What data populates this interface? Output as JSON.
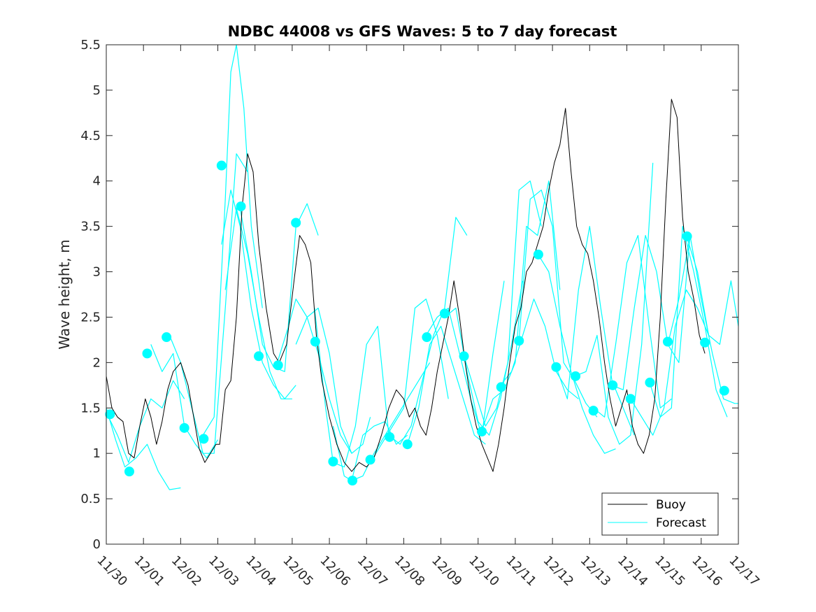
{
  "chart_data": {
    "type": "line",
    "title": "NDBC 44008 vs GFS Waves: 5 to 7 day forecast",
    "ylabel": "Wave height, m",
    "xlabel": "",
    "xlim": [
      0,
      17
    ],
    "ylim": [
      0,
      5.5
    ],
    "yticks": [
      "0",
      "0.5",
      "1",
      "1.5",
      "2",
      "2.5",
      "3",
      "3.5",
      "4",
      "4.5",
      "5",
      "5.5"
    ],
    "xticks": [
      "11/30",
      "12/01",
      "12/02",
      "12/03",
      "12/04",
      "12/05",
      "12/06",
      "12/07",
      "12/08",
      "12/09",
      "12/10",
      "12/11",
      "12/12",
      "12/13",
      "12/14",
      "12/15",
      "12/16",
      "12/17"
    ],
    "legend": {
      "location": "bottom-right",
      "entries": [
        "Buoy",
        "Forecast"
      ]
    },
    "colors": {
      "buoy": "#000000",
      "forecast": "#00ffff",
      "axis": "#262626"
    },
    "series": [
      {
        "name": "Buoy",
        "x": [
          0,
          0.15,
          0.3,
          0.45,
          0.6,
          0.75,
          0.9,
          1.05,
          1.2,
          1.35,
          1.5,
          1.65,
          1.8,
          2.0,
          2.2,
          2.35,
          2.5,
          2.65,
          2.8,
          2.95,
          3.05,
          3.2,
          3.35,
          3.5,
          3.65,
          3.8,
          3.95,
          4.1,
          4.3,
          4.5,
          4.65,
          4.85,
          5.05,
          5.2,
          5.35,
          5.5,
          5.65,
          5.8,
          6.0,
          6.2,
          6.4,
          6.6,
          6.8,
          7.0,
          7.2,
          7.4,
          7.6,
          7.8,
          8.0,
          8.15,
          8.3,
          8.45,
          8.6,
          8.75,
          8.9,
          9.05,
          9.2,
          9.35,
          9.5,
          9.65,
          9.8,
          9.95,
          10.1,
          10.25,
          10.4,
          10.55,
          10.7,
          10.85,
          11.0,
          11.15,
          11.3,
          11.45,
          11.6,
          11.75,
          11.9,
          12.05,
          12.2,
          12.35,
          12.5,
          12.65,
          12.8,
          12.95,
          13.1,
          13.25,
          13.4,
          13.55,
          13.7,
          13.85,
          14.0,
          14.15,
          14.3,
          14.45,
          14.6,
          14.75,
          14.9,
          15.05,
          15.2,
          15.35,
          15.5,
          15.65,
          15.8,
          15.95,
          16.1
        ],
        "values": [
          1.85,
          1.5,
          1.4,
          1.35,
          1.0,
          0.95,
          1.3,
          1.6,
          1.4,
          1.1,
          1.35,
          1.7,
          1.9,
          2.0,
          1.75,
          1.4,
          1.05,
          0.9,
          1.0,
          1.1,
          1.1,
          1.7,
          1.8,
          2.5,
          3.7,
          4.3,
          4.1,
          3.3,
          2.6,
          2.1,
          2.0,
          2.2,
          2.9,
          3.4,
          3.3,
          3.1,
          2.3,
          1.8,
          1.4,
          1.1,
          0.9,
          0.8,
          0.9,
          0.85,
          0.95,
          1.2,
          1.5,
          1.7,
          1.6,
          1.4,
          1.5,
          1.3,
          1.2,
          1.5,
          1.9,
          2.2,
          2.5,
          2.9,
          2.5,
          2.0,
          1.6,
          1.3,
          1.1,
          0.95,
          0.8,
          1.1,
          1.5,
          2.0,
          2.4,
          2.6,
          3.0,
          3.1,
          3.3,
          3.5,
          3.9,
          4.2,
          4.4,
          4.8,
          4.1,
          3.5,
          3.3,
          3.2,
          2.9,
          2.5,
          2.0,
          1.6,
          1.3,
          1.5,
          1.7,
          1.3,
          1.1,
          1.0,
          1.2,
          1.6,
          2.5,
          3.8,
          4.9,
          4.7,
          3.6,
          3.0,
          2.7,
          2.3,
          2.1
        ]
      },
      {
        "name": "Forecast",
        "segments": [
          {
            "x": [
              0,
              0.25,
              0.5,
              0.8,
              1.1,
              1.4,
              1.7,
              2.0
            ],
            "values": [
              1.5,
              1.15,
              0.85,
              0.95,
              1.1,
              0.8,
              0.6,
              0.62
            ]
          },
          {
            "x": [
              0,
              0.3,
              0.6,
              0.9,
              1.2,
              1.5,
              1.8,
              2.1
            ],
            "values": [
              1.45,
              1.2,
              0.9,
              1.3,
              1.6,
              1.5,
              1.8,
              1.6
            ]
          },
          {
            "x": [
              1.2,
              1.5,
              1.8,
              2.1,
              2.4,
              2.7,
              3.0
            ],
            "values": [
              2.2,
              1.9,
              2.1,
              1.3,
              1.1,
              0.95,
              1.15
            ]
          },
          {
            "x": [
              1.7,
              2.0,
              2.3,
              2.6,
              2.9,
              3.2,
              3.5,
              3.8
            ],
            "values": [
              2.3,
              2.0,
              1.5,
              1.0,
              1.0,
              2.6,
              4.3,
              4.1
            ]
          },
          {
            "x": [
              2.6,
              2.9,
              3.2,
              3.35,
              3.5,
              3.7,
              3.9,
              4.2
            ],
            "values": [
              1.2,
              1.4,
              3.8,
              5.2,
              5.5,
              4.8,
              3.5,
              2.6
            ]
          },
          {
            "x": [
              3.1,
              3.35,
              3.6,
              3.9,
              4.2,
              4.5,
              4.8,
              5.1
            ],
            "values": [
              3.3,
              3.9,
              3.5,
              2.6,
              2.0,
              1.75,
              1.6,
              1.75
            ]
          },
          {
            "x": [
              3.2,
              3.5,
              3.8,
              4.1,
              4.4,
              4.7,
              5.0
            ],
            "values": [
              2.8,
              3.7,
              3.2,
              2.5,
              1.9,
              1.6,
              1.6
            ]
          },
          {
            "x": [
              3.6,
              3.9,
              4.2,
              4.5,
              4.8,
              5.1,
              5.4,
              5.7
            ],
            "values": [
              3.7,
              3.0,
              2.2,
              1.95,
              1.9,
              3.5,
              3.75,
              3.4
            ]
          },
          {
            "x": [
              4.6,
              4.9,
              5.1,
              5.4,
              5.7,
              6.0,
              6.3,
              6.6
            ],
            "values": [
              2.0,
              2.4,
              2.7,
              2.5,
              2.1,
              1.6,
              1.2,
              1.0
            ]
          },
          {
            "x": [
              5.1,
              5.4,
              5.7,
              6.0,
              6.3,
              6.6,
              6.9,
              7.1
            ],
            "values": [
              2.2,
              2.5,
              2.6,
              2.1,
              1.3,
              1.0,
              1.1,
              1.4
            ]
          },
          {
            "x": [
              5.6,
              5.9,
              6.1,
              6.4,
              6.7,
              7.0,
              7.3,
              7.6
            ],
            "values": [
              2.6,
              1.5,
              0.9,
              0.85,
              1.3,
              2.2,
              2.4,
              1.2
            ]
          },
          {
            "x": [
              6.1,
              6.4,
              6.6,
              6.9,
              7.2,
              7.5,
              7.8,
              8.1
            ],
            "values": [
              1.3,
              0.75,
              0.7,
              1.2,
              1.3,
              1.35,
              1.1,
              1.2
            ]
          },
          {
            "x": [
              6.6,
              6.9,
              7.2,
              7.5,
              7.8,
              8.1,
              8.4,
              8.7
            ],
            "values": [
              0.7,
              0.75,
              1.0,
              1.2,
              1.4,
              1.6,
              1.8,
              2.0
            ]
          },
          {
            "x": [
              7.1,
              7.4,
              7.7,
              8.0,
              8.3,
              8.6,
              8.9,
              9.2
            ],
            "values": [
              0.9,
              1.1,
              1.3,
              1.5,
              2.6,
              2.7,
              2.3,
              1.6
            ]
          },
          {
            "x": [
              7.6,
              7.9,
              8.2,
              8.5,
              8.8,
              9.1,
              9.4,
              9.7
            ],
            "values": [
              1.2,
              1.1,
              1.3,
              1.8,
              2.3,
              2.6,
              3.6,
              3.4
            ]
          },
          {
            "x": [
              8.1,
              8.4,
              8.7,
              9.0,
              9.3,
              9.6,
              9.9,
              10.2
            ],
            "values": [
              1.1,
              1.5,
              2.2,
              2.4,
              2.0,
              1.6,
              1.2,
              1.1
            ]
          },
          {
            "x": [
              8.6,
              8.9,
              9.2,
              9.5,
              9.8,
              10.1,
              10.4,
              10.7
            ],
            "values": [
              2.3,
              2.5,
              2.6,
              2.1,
              1.6,
              1.2,
              2.1,
              2.9
            ]
          },
          {
            "x": [
              9.1,
              9.4,
              9.7,
              10.0,
              10.3,
              10.6,
              10.9,
              11.2
            ],
            "values": [
              2.5,
              2.6,
              1.9,
              1.35,
              1.2,
              1.6,
              2.2,
              2.9
            ]
          },
          {
            "x": [
              9.6,
              9.9,
              10.2,
              10.5,
              10.8,
              11.1,
              11.4,
              11.7
            ],
            "values": [
              2.1,
              1.7,
              1.3,
              1.5,
              2.0,
              3.9,
              4.0,
              3.5
            ]
          },
          {
            "x": [
              10.1,
              10.4,
              10.7,
              11.0,
              11.3,
              11.6,
              11.9,
              12.2
            ],
            "values": [
              1.25,
              1.6,
              1.7,
              2.0,
              3.5,
              3.4,
              4.0,
              2.8
            ]
          },
          {
            "x": [
              10.6,
              10.9,
              11.2,
              11.5,
              11.8,
              12.1,
              12.4,
              12.7
            ],
            "values": [
              1.75,
              1.9,
              2.3,
              2.7,
              2.4,
              1.9,
              1.7,
              1.6
            ]
          },
          {
            "x": [
              11.1,
              11.4,
              11.7,
              12.0,
              12.3,
              12.6,
              12.9,
              13.2
            ],
            "values": [
              2.25,
              3.8,
              3.9,
              3.5,
              2.0,
              1.8,
              1.55,
              1.4
            ]
          },
          {
            "x": [
              11.6,
              11.9,
              12.2,
              12.5,
              12.8,
              13.1,
              13.4,
              13.7
            ],
            "values": [
              3.2,
              3.0,
              2.4,
              1.9,
              1.5,
              1.2,
              1.0,
              1.05
            ]
          },
          {
            "x": [
              12.1,
              12.4,
              12.7,
              13.0,
              13.3,
              13.6,
              13.9,
              14.2
            ],
            "values": [
              1.95,
              1.6,
              2.8,
              3.5,
              2.6,
              1.8,
              1.5,
              1.2
            ]
          },
          {
            "x": [
              12.6,
              12.9,
              13.2,
              13.5,
              13.8,
              14.1,
              14.4,
              14.7
            ],
            "values": [
              1.85,
              1.9,
              2.3,
              1.4,
              1.1,
              1.2,
              2.2,
              4.2
            ]
          },
          {
            "x": [
              13.1,
              13.4,
              13.7,
              14.0,
              14.3,
              14.6,
              14.9,
              15.2
            ],
            "values": [
              1.5,
              1.4,
              2.2,
              3.1,
              3.4,
              2.4,
              1.5,
              1.6
            ]
          },
          {
            "x": [
              13.6,
              13.9,
              14.2,
              14.5,
              14.8,
              15.1,
              15.4,
              15.7
            ],
            "values": [
              1.75,
              1.7,
              2.6,
              3.4,
              3.0,
              2.2,
              2.0,
              3.4
            ]
          },
          {
            "x": [
              14.1,
              14.4,
              14.7,
              15.0,
              15.3,
              15.6,
              15.9,
              16.2
            ],
            "values": [
              1.6,
              1.4,
              1.2,
              1.5,
              2.4,
              2.8,
              2.6,
              2.3
            ]
          },
          {
            "x": [
              14.6,
              14.9,
              15.2,
              15.5,
              15.8,
              16.1,
              16.4,
              16.7
            ],
            "values": [
              1.8,
              1.4,
              1.5,
              3.5,
              3.0,
              2.4,
              1.7,
              1.4
            ]
          },
          {
            "x": [
              15.1,
              15.4,
              15.7,
              16.0,
              16.3,
              16.6,
              16.9,
              17.0
            ],
            "values": [
              2.2,
              2.7,
              3.4,
              2.7,
              2.1,
              1.6,
              1.55,
              1.55
            ]
          },
          {
            "x": [
              15.6,
              15.9,
              16.2,
              16.5,
              16.8,
              17.0
            ],
            "values": [
              3.4,
              3.0,
              2.3,
              2.2,
              2.9,
              2.4
            ]
          }
        ],
        "markers": {
          "x": [
            0.1,
            0.62,
            1.1,
            1.62,
            2.1,
            2.62,
            3.1,
            3.62,
            4.1,
            4.62,
            5.1,
            5.62,
            6.1,
            6.62,
            7.1,
            7.62,
            8.1,
            8.62,
            9.1,
            9.62,
            10.1,
            10.62,
            11.1,
            11.62,
            12.1,
            12.62,
            13.1,
            13.62,
            14.1,
            14.62,
            15.1,
            15.62,
            16.1,
            16.62
          ],
          "values": [
            1.43,
            0.8,
            2.1,
            2.28,
            1.28,
            1.16,
            4.17,
            3.72,
            2.07,
            1.97,
            3.54,
            2.23,
            0.91,
            0.7,
            0.93,
            1.18,
            1.1,
            2.28,
            2.54,
            2.07,
            1.24,
            1.73,
            2.24,
            3.19,
            1.95,
            1.85,
            1.47,
            1.75,
            1.6,
            1.78,
            2.23,
            3.39,
            2.22,
            1.69
          ]
        }
      }
    ]
  }
}
